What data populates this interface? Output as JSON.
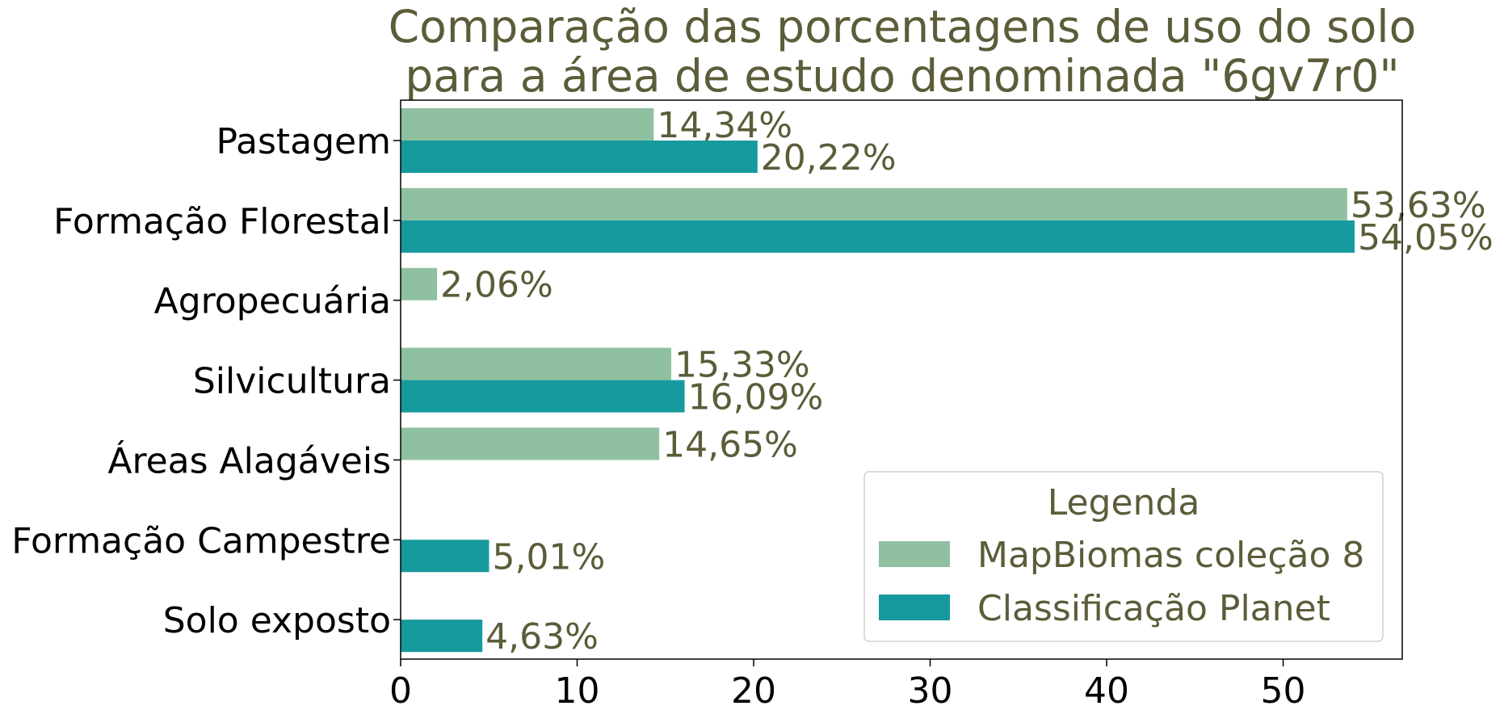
{
  "colors": {
    "title": "#5c5c3a",
    "value_text": "#5c5c3a",
    "legend_text": "#5c5c3a",
    "series1": "#8fc0a0",
    "series2": "#169a9e",
    "axis": "#000000"
  },
  "chart_data": {
    "type": "bar",
    "orientation": "horizontal",
    "title_lines": [
      "Comparação das porcentagens de uso do solo",
      "para a área de estudo denominada \"6gv7r0\""
    ],
    "categories": [
      "Pastagem",
      "Formação Florestal",
      "Agropecuária",
      "Silvicultura",
      "Áreas Alagáveis",
      "Formação Campestre",
      "Solo exposto"
    ],
    "series": [
      {
        "name": "MapBiomas coleção 8",
        "values": [
          14.34,
          53.63,
          2.06,
          15.33,
          14.65,
          null,
          null
        ],
        "labels": [
          "14,34%",
          "53,63%",
          "2,06%",
          "15,33%",
          "14,65%",
          "",
          ""
        ]
      },
      {
        "name": "Classificação Planet",
        "values": [
          20.22,
          54.05,
          null,
          16.09,
          null,
          5.01,
          4.63
        ],
        "labels": [
          "20,22%",
          "54,05%",
          "",
          "16,09%",
          "",
          "5,01%",
          "4,63%"
        ]
      }
    ],
    "xlim": [
      0,
      56.75
    ],
    "xticks": [
      0,
      10,
      20,
      30,
      40,
      50
    ],
    "xtick_labels": [
      "0",
      "10",
      "20",
      "30",
      "40",
      "50"
    ],
    "grid": false,
    "legend": {
      "title": "Legenda",
      "placement": "lower-right"
    }
  }
}
